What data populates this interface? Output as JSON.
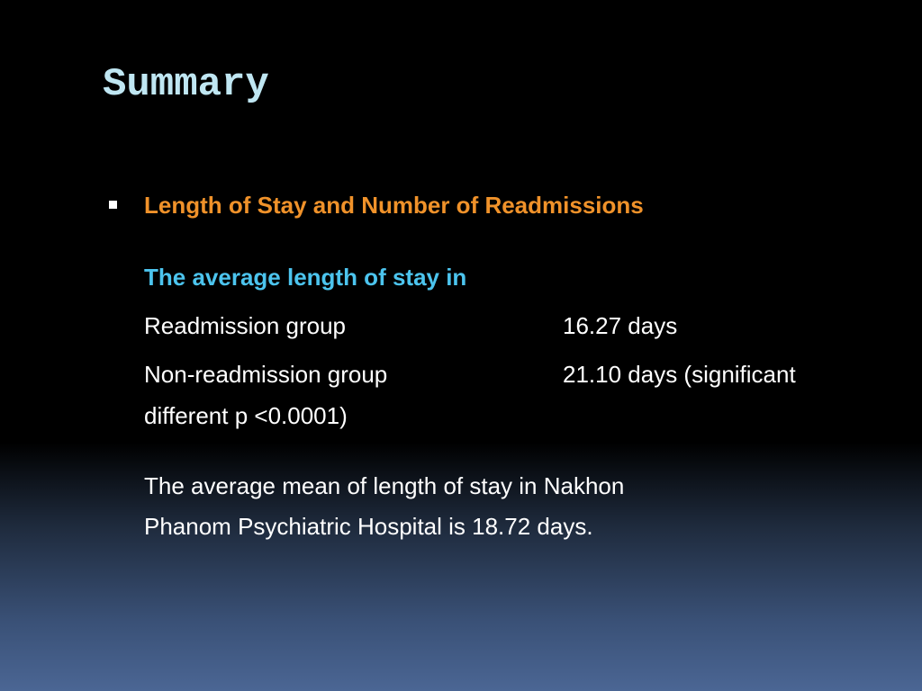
{
  "slide": {
    "title": "Summary",
    "bullet": "Length of Stay and Number of Readmissions",
    "subheading": "The average length of stay in",
    "rows": [
      [
        "Readmission group",
        "16.27 days"
      ],
      [
        "Non-readmission group",
        "21.10 days (significant"
      ]
    ],
    "row_continuation": "different p <0.0001)",
    "paragraph": [
      "The average mean of length of stay in Nakhon",
      "Phanom Psychiatric Hospital is 18.72 days."
    ]
  }
}
